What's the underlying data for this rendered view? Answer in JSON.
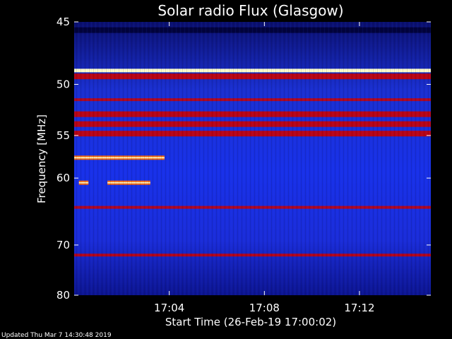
{
  "chart_data": {
    "type": "heatmap",
    "title": "Solar radio Flux (Glasgow)",
    "xlabel": "Start Time (26-Feb-19 17:00:02)",
    "ylabel": "Frequency [MHz]",
    "x_ticks": [
      "17:04",
      "17:08",
      "17:12"
    ],
    "x_tick_minutes": [
      4,
      8,
      12
    ],
    "x_range_minutes": [
      0,
      15
    ],
    "y_ticks": [
      45,
      50,
      55,
      60,
      70,
      80
    ],
    "y_range_mhz": [
      45,
      80
    ],
    "y_scale": "reciprocal",
    "colormap": [
      "#000033",
      "#0000a0",
      "#1a33ff",
      "#cc0000",
      "#ff6600",
      "#ffffcc"
    ],
    "bands": [
      {
        "mhz": 45.6,
        "intensity": "low"
      },
      {
        "mhz": 48.8,
        "intensity": "very-high"
      },
      {
        "mhz": 49.3,
        "intensity": "high"
      },
      {
        "mhz": 51.4,
        "intensity": "medium"
      },
      {
        "mhz": 52.8,
        "intensity": "high"
      },
      {
        "mhz": 53.8,
        "intensity": "high"
      },
      {
        "mhz": 54.8,
        "intensity": "high"
      },
      {
        "mhz": 64.0,
        "intensity": "medium"
      },
      {
        "mhz": 71.8,
        "intensity": "medium"
      }
    ],
    "bursts": [
      {
        "start_min": 0.0,
        "end_min": 3.8,
        "mhz": 57.5,
        "intensity": "high"
      },
      {
        "start_min": 0.2,
        "end_min": 0.6,
        "mhz": 60.6,
        "intensity": "high"
      },
      {
        "start_min": 1.4,
        "end_min": 3.2,
        "mhz": 60.6,
        "intensity": "high"
      }
    ]
  },
  "footer": {
    "updated": "Updated Thu Mar  7 14:30:48 2019"
  }
}
